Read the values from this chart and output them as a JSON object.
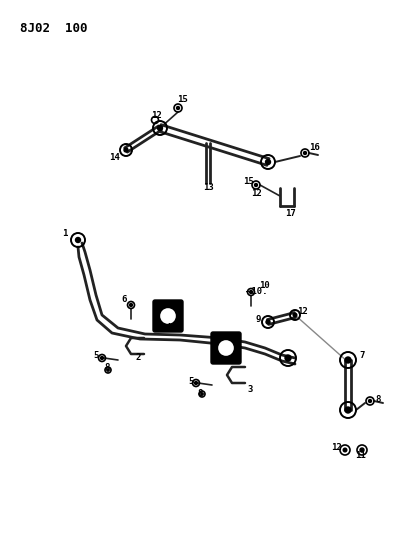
{
  "title": "8J02  100",
  "background": "#ffffff",
  "line_color": "#222222",
  "text_color": "#000000",
  "fig_width": 3.98,
  "fig_height": 5.33,
  "dpi": 100
}
